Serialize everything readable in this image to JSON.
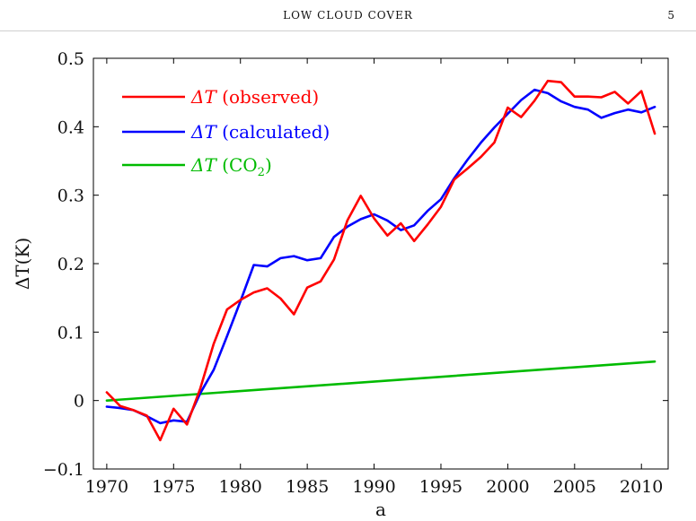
{
  "header": {
    "running_title": "LOW CLOUD COVER",
    "page_number": "5"
  },
  "chart_data": {
    "type": "line",
    "title": "",
    "xlabel": "a",
    "ylabel": "ΔT(K)",
    "xlim": [
      1969,
      2012
    ],
    "ylim": [
      -0.1,
      0.5
    ],
    "xticks": [
      1970,
      1975,
      1980,
      1985,
      1990,
      1995,
      2000,
      2005,
      2010
    ],
    "yticks": [
      -0.1,
      0,
      0.1,
      0.2,
      0.3,
      0.4,
      0.5
    ],
    "ytick_labels": [
      "−0.1",
      "0",
      "0.1",
      "0.2",
      "0.3",
      "0.4",
      "0.5"
    ],
    "grid": false,
    "legend_position": "top-left",
    "series": [
      {
        "name": "ΔT (observed)",
        "legend_symbol": "ΔT",
        "legend_rest": " (observed)",
        "color": "#ff0000",
        "x": [
          1970,
          1971,
          1972,
          1973,
          1974,
          1975,
          1976,
          1977,
          1978,
          1979,
          1980,
          1981,
          1982,
          1983,
          1984,
          1985,
          1986,
          1987,
          1988,
          1989,
          1990,
          1991,
          1992,
          1993,
          1994,
          1995,
          1996,
          1997,
          1998,
          1999,
          2000,
          2001,
          2002,
          2003,
          2004,
          2005,
          2006,
          2007,
          2008,
          2009,
          2010,
          2011
        ],
        "y": [
          0.012,
          -0.008,
          -0.014,
          -0.022,
          -0.058,
          -0.012,
          -0.035,
          0.018,
          0.083,
          0.133,
          0.147,
          0.158,
          0.164,
          0.149,
          0.126,
          0.165,
          0.174,
          0.206,
          0.263,
          0.299,
          0.266,
          0.241,
          0.259,
          0.233,
          0.257,
          0.283,
          0.323,
          0.339,
          0.356,
          0.377,
          0.428,
          0.414,
          0.438,
          0.467,
          0.465,
          0.444,
          0.444,
          0.443,
          0.451,
          0.434,
          0.452,
          0.39
        ]
      },
      {
        "name": "ΔT (calculated)",
        "legend_symbol": "ΔT",
        "legend_rest": " (calculated)",
        "color": "#0000ff",
        "x": [
          1970,
          1971,
          1972,
          1973,
          1974,
          1975,
          1976,
          1977,
          1978,
          1979,
          1980,
          1981,
          1982,
          1983,
          1984,
          1985,
          1986,
          1987,
          1988,
          1989,
          1990,
          1991,
          1992,
          1993,
          1994,
          1995,
          1996,
          1997,
          1998,
          1999,
          2000,
          2001,
          2002,
          2003,
          2004,
          2005,
          2006,
          2007,
          2008,
          2009,
          2010,
          2011
        ],
        "y": [
          -0.009,
          -0.011,
          -0.014,
          -0.023,
          -0.033,
          -0.029,
          -0.031,
          0.011,
          0.045,
          0.094,
          0.145,
          0.198,
          0.196,
          0.208,
          0.211,
          0.205,
          0.208,
          0.239,
          0.254,
          0.265,
          0.272,
          0.263,
          0.249,
          0.256,
          0.277,
          0.294,
          0.325,
          0.352,
          0.377,
          0.399,
          0.419,
          0.439,
          0.454,
          0.449,
          0.437,
          0.429,
          0.425,
          0.413,
          0.42,
          0.425,
          0.421,
          0.429
        ]
      },
      {
        "name": "ΔT (CO₂)",
        "legend_symbol": "ΔT",
        "legend_rest": " (CO",
        "legend_sub": "2",
        "legend_close": ")",
        "color": "#00bb00",
        "x": [
          1970,
          2011
        ],
        "y": [
          0.0,
          0.057
        ]
      }
    ]
  }
}
